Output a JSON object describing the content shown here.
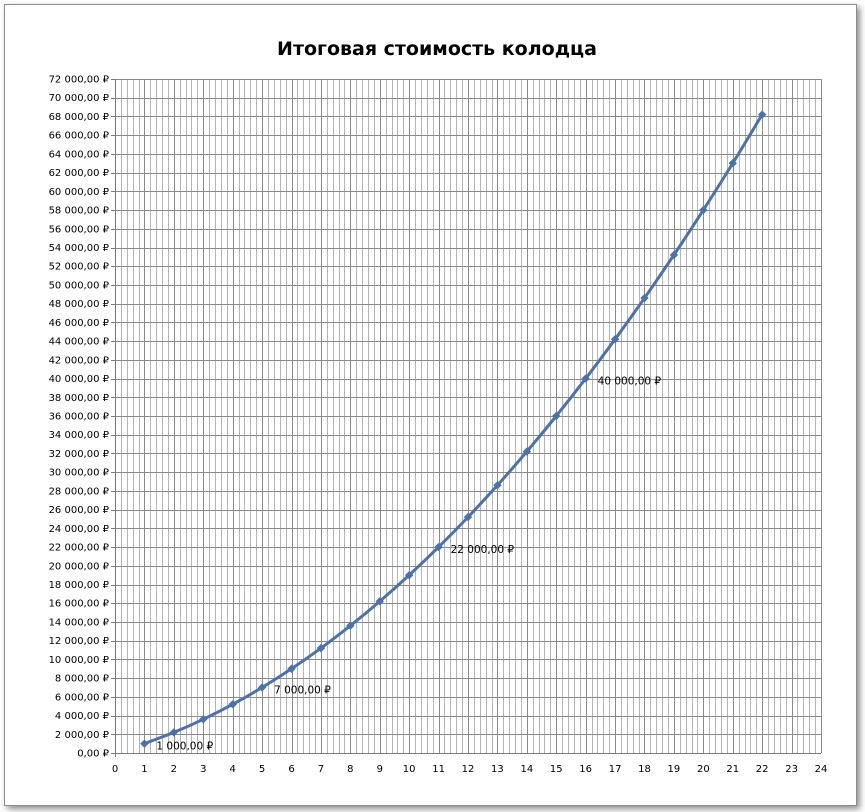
{
  "chart_data": {
    "type": "line",
    "title": "Итоговая стоимость колодца",
    "xlabel": "",
    "ylabel": "",
    "x": [
      1,
      2,
      3,
      4,
      5,
      6,
      7,
      8,
      9,
      10,
      11,
      12,
      13,
      14,
      15,
      16,
      17,
      18,
      19,
      20,
      21,
      22
    ],
    "series": [
      {
        "color": "#4a72b2",
        "values": [
          1000,
          2200,
          3600,
          5200,
          7000,
          9000,
          11200,
          13600,
          16200,
          19000,
          22000,
          25200,
          28600,
          32200,
          36000,
          40000,
          44200,
          48600,
          53200,
          58000,
          63000,
          68200
        ]
      }
    ],
    "xlim": [
      0,
      24
    ],
    "ylim": [
      0,
      72000
    ],
    "x_ticks": [
      "0",
      "1",
      "2",
      "3",
      "4",
      "5",
      "6",
      "7",
      "8",
      "9",
      "10",
      "11",
      "12",
      "13",
      "14",
      "15",
      "16",
      "17",
      "18",
      "19",
      "20",
      "21",
      "22",
      "23",
      "24"
    ],
    "y_ticks": [
      "0,00 ₽",
      "2 000,00 ₽",
      "4 000,00 ₽",
      "6 000,00 ₽",
      "8 000,00 ₽",
      "10 000,00 ₽",
      "12 000,00 ₽",
      "14 000,00 ₽",
      "16 000,00 ₽",
      "18 000,00 ₽",
      "20 000,00 ₽",
      "22 000,00 ₽",
      "24 000,00 ₽",
      "26 000,00 ₽",
      "28 000,00 ₽",
      "30 000,00 ₽",
      "32 000,00 ₽",
      "34 000,00 ₽",
      "36 000,00 ₽",
      "38 000,00 ₽",
      "40 000,00 ₽",
      "42 000,00 ₽",
      "44 000,00 ₽",
      "46 000,00 ₽",
      "48 000,00 ₽",
      "50 000,00 ₽",
      "52 000,00 ₽",
      "54 000,00 ₽",
      "56 000,00 ₽",
      "58 000,00 ₽",
      "60 000,00 ₽",
      "62 000,00 ₽",
      "64 000,00 ₽",
      "66 000,00 ₽",
      "68 000,00 ₽",
      "70 000,00 ₽",
      "72 000,00 ₽"
    ],
    "data_labels": [
      {
        "x": 1,
        "text": "1 000,00 ₽"
      },
      {
        "x": 5,
        "text": "7 000,00 ₽"
      },
      {
        "x": 11,
        "text": "22 000,00 ₽"
      },
      {
        "x": 16,
        "text": "40 000,00 ₽"
      }
    ],
    "grid": "on",
    "minor_x_grid": "on",
    "legend": "none"
  }
}
